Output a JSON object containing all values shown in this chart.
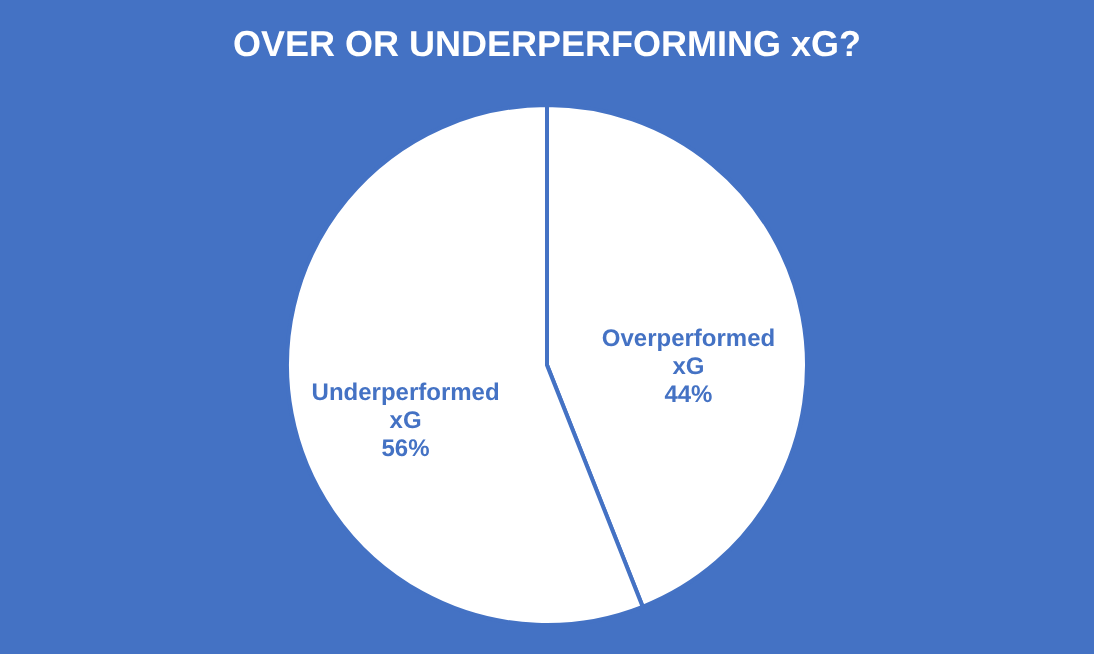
{
  "chart_data": {
    "type": "pie",
    "title": "OVER OR UNDERPERFORMING xG?",
    "categories": [
      "Overperformed xG",
      "Underperformed xG"
    ],
    "values": [
      44,
      56
    ],
    "colors": [
      "#ffffff",
      "#ffffff"
    ],
    "value_labels": [
      "44%",
      "56%"
    ],
    "legend": false
  }
}
